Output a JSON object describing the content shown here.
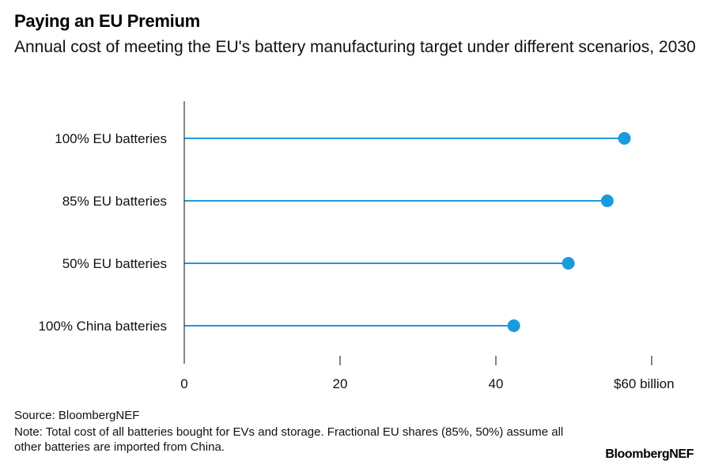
{
  "title": "Paying an EU Premium",
  "subtitle": "Annual cost of meeting the EU's battery manufacturing target under different scenarios, 2030",
  "source": "Source: BloombergNEF",
  "note": "Note: Total cost of all batteries bought for EVs and storage. Fractional EU shares (85%, 50%) assume all other batteries are imported from China.",
  "brand": "BloombergNEF",
  "colors": {
    "series": "#1a9bdc",
    "axis": "#333333"
  },
  "chart_data": {
    "type": "dot",
    "categories": [
      "100% EU batteries",
      "85% EU batteries",
      "50% EU batteries",
      "100% China batteries"
    ],
    "values": [
      56.5,
      54.3,
      49.3,
      42.3
    ],
    "xlim": [
      0,
      60
    ],
    "xticks": [
      0,
      20,
      40,
      60
    ],
    "xtick_labels": [
      "0",
      "20",
      "40",
      "$60 billion"
    ],
    "unit": "$ billion",
    "grid": false,
    "legend": "none"
  }
}
